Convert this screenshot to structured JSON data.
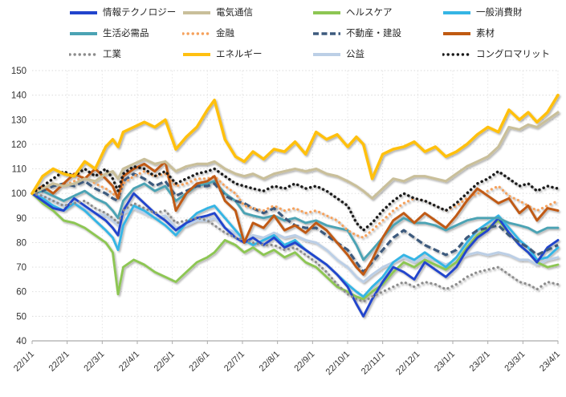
{
  "chart_data": {
    "type": "line",
    "title": "",
    "legend_position": "top",
    "grid": "dotted horizontal and vertical gridlines",
    "x_unit": "months since 2022-01-01",
    "xlim": [
      0,
      15
    ],
    "ylim": [
      40,
      150
    ],
    "y_ticks": [
      40,
      50,
      60,
      70,
      80,
      90,
      100,
      110,
      120,
      130,
      140,
      150
    ],
    "x_tick_labels": [
      "22/1/1",
      "22/2/1",
      "22/3/1",
      "22/4/1",
      "22/5/1",
      "22/6/1",
      "22/7/1",
      "22/8/1",
      "22/9/1",
      "22/10/1",
      "22/11/1",
      "22/12/1",
      "23/1/1",
      "23/2/1",
      "23/3/1",
      "23/4/1"
    ],
    "x": [
      0,
      0.3,
      0.6,
      0.9,
      1.2,
      1.5,
      1.8,
      2.1,
      2.3,
      2.45,
      2.6,
      2.9,
      3.2,
      3.5,
      3.8,
      4.1,
      4.4,
      4.7,
      5.0,
      5.2,
      5.5,
      5.8,
      6.05,
      6.3,
      6.6,
      6.9,
      7.2,
      7.5,
      7.8,
      8.1,
      8.4,
      8.7,
      9.0,
      9.25,
      9.45,
      9.7,
      10.0,
      10.3,
      10.6,
      10.9,
      11.2,
      11.5,
      11.8,
      12.1,
      12.4,
      12.7,
      13.0,
      13.3,
      13.6,
      13.9,
      14.15,
      14.4,
      14.7,
      15.0
    ],
    "series": [
      {
        "key": "it",
        "name": "情報テクノロジー",
        "color": "#2144CC",
        "style": "solid",
        "values": [
          100,
          97,
          94,
          93,
          98,
          95,
          92,
          89,
          86,
          83,
          93,
          100,
          96,
          92,
          89,
          85,
          88,
          90,
          91,
          92,
          86,
          82,
          80,
          82,
          79,
          82,
          78,
          80,
          77,
          74,
          71,
          67,
          62,
          55,
          50,
          57,
          64,
          70,
          68,
          65,
          72,
          69,
          66,
          70,
          77,
          82,
          85,
          90,
          84,
          79,
          76,
          72,
          78,
          81
        ]
      },
      {
        "key": "telecom",
        "name": "電気通信",
        "color": "#C9BF9A",
        "style": "solid",
        "values": [
          100,
          102,
          104,
          103,
          104,
          106,
          105,
          108,
          109,
          106,
          110,
          112,
          114,
          112,
          113,
          109,
          111,
          112,
          112,
          113,
          110,
          108,
          107,
          108,
          106,
          108,
          109,
          110,
          109,
          110,
          108,
          107,
          105,
          103,
          101,
          98,
          102,
          106,
          105,
          107,
          107,
          106,
          105,
          108,
          111,
          113,
          115,
          119,
          127,
          126,
          128,
          127,
          130,
          133
        ]
      },
      {
        "key": "healthcare",
        "name": "ヘルスケア",
        "color": "#8DC653",
        "style": "solid",
        "values": [
          100,
          96,
          93,
          89,
          88,
          86,
          83,
          80,
          76,
          59,
          70,
          73,
          71,
          68,
          66,
          64,
          68,
          72,
          74,
          76,
          81,
          79,
          76,
          78,
          75,
          77,
          74,
          76,
          72,
          70,
          66,
          62,
          60,
          58,
          57,
          60,
          63,
          68,
          72,
          70,
          73,
          71,
          69,
          72,
          78,
          83,
          86,
          89,
          84,
          79,
          76,
          72,
          70,
          71
        ]
      },
      {
        "key": "consumer-discretionary",
        "name": "一般消費財",
        "color": "#35B5E5",
        "style": "solid",
        "values": [
          100,
          98,
          95,
          93,
          96,
          93,
          89,
          85,
          82,
          77,
          87,
          95,
          93,
          90,
          87,
          83,
          88,
          92,
          94,
          95,
          90,
          85,
          81,
          79,
          81,
          83,
          79,
          81,
          77,
          74,
          71,
          67,
          63,
          60,
          58,
          62,
          66,
          72,
          75,
          73,
          76,
          73,
          70,
          74,
          80,
          85,
          88,
          91,
          86,
          81,
          78,
          73,
          74,
          78
        ]
      },
      {
        "key": "staples",
        "name": "生活必需品",
        "color": "#4BA3B4",
        "style": "solid",
        "values": [
          100,
          101,
          99,
          97,
          99,
          101,
          98,
          96,
          93,
          90,
          97,
          102,
          104,
          101,
          103,
          97,
          100,
          103,
          104,
          105,
          100,
          97,
          92,
          91,
          90,
          91,
          89,
          90,
          88,
          89,
          87,
          86,
          85,
          79,
          73,
          77,
          82,
          87,
          90,
          88,
          88,
          87,
          85,
          87,
          89,
          90,
          90,
          90,
          88,
          87,
          86,
          84,
          86,
          86
        ]
      },
      {
        "key": "financials",
        "name": "金融",
        "color": "#F5A15C",
        "style": "dotted",
        "values": [
          100,
          102,
          104,
          103,
          105,
          107,
          104,
          102,
          100,
          98,
          104,
          107,
          109,
          107,
          108,
          103,
          104,
          106,
          106,
          107,
          103,
          100,
          95,
          94,
          93,
          95,
          93,
          94,
          92,
          93,
          91,
          89,
          85,
          83,
          82,
          85,
          89,
          93,
          96,
          98,
          97,
          95,
          93,
          95,
          98,
          100,
          101,
          103,
          99,
          97,
          95,
          93,
          95,
          97
        ]
      },
      {
        "key": "real-estate",
        "name": "不動産・建設",
        "color": "#3D5A7D",
        "style": "dashed",
        "values": [
          100,
          101,
          103,
          104,
          103,
          105,
          102,
          100,
          98,
          97,
          105,
          108,
          106,
          103,
          105,
          99,
          101,
          103,
          103,
          104,
          99,
          97,
          96,
          94,
          92,
          94,
          90,
          87,
          86,
          86,
          83,
          80,
          77,
          72,
          68,
          72,
          77,
          82,
          85,
          82,
          79,
          77,
          75,
          77,
          82,
          85,
          86,
          87,
          83,
          80,
          78,
          75,
          77,
          79
        ]
      },
      {
        "key": "materials",
        "name": "素材",
        "color": "#C05A12",
        "style": "solid",
        "values": [
          100,
          103,
          100,
          104,
          108,
          106,
          110,
          106,
          103,
          98,
          107,
          110,
          112,
          109,
          113,
          93,
          100,
          104,
          105,
          107,
          97,
          93,
          80,
          88,
          86,
          91,
          85,
          87,
          84,
          88,
          85,
          80,
          75,
          70,
          67,
          73,
          82,
          89,
          92,
          88,
          92,
          89,
          86,
          91,
          97,
          102,
          99,
          96,
          98,
          92,
          95,
          89,
          94,
          93
        ]
      },
      {
        "key": "industrials",
        "name": "工業",
        "color": "#8C8C8C",
        "style": "dotted",
        "values": [
          100,
          99,
          97,
          95,
          96,
          97,
          94,
          92,
          90,
          88,
          93,
          96,
          94,
          92,
          93,
          88,
          89,
          90,
          89,
          87,
          84,
          82,
          81,
          80,
          79,
          79,
          77,
          78,
          75,
          72,
          68,
          63,
          59,
          57,
          56,
          58,
          60,
          62,
          64,
          62,
          64,
          63,
          61,
          63,
          66,
          68,
          69,
          70,
          67,
          64,
          63,
          61,
          64,
          63
        ]
      },
      {
        "key": "energy",
        "name": "エネルギー",
        "color": "#FFC011",
        "style": "solid",
        "values": [
          100,
          107,
          110,
          108,
          107,
          113,
          110,
          119,
          122,
          119,
          125,
          127,
          129,
          127,
          130,
          118,
          123,
          127,
          134,
          138,
          122,
          115,
          113,
          117,
          114,
          118,
          117,
          121,
          116,
          125,
          122,
          124,
          119,
          123,
          120,
          106,
          116,
          118,
          119,
          121,
          117,
          119,
          115,
          117,
          120,
          124,
          127,
          125,
          134,
          130,
          133,
          129,
          133,
          140
        ]
      },
      {
        "key": "utilities",
        "name": "公益",
        "color": "#BCCFE6",
        "style": "solid",
        "values": [
          100,
          99,
          97,
          95,
          96,
          94,
          92,
          91,
          89,
          87,
          92,
          94,
          92,
          90,
          91,
          86,
          87,
          89,
          89,
          90,
          86,
          84,
          81,
          83,
          82,
          84,
          82,
          83,
          81,
          80,
          77,
          73,
          70,
          66,
          64,
          67,
          70,
          72,
          74,
          72,
          74,
          73,
          71,
          73,
          75,
          76,
          75,
          76,
          75,
          73,
          73,
          71,
          73,
          74
        ]
      },
      {
        "key": "conglomerates",
        "name": "コングロマリット",
        "color": "#1A1A1A",
        "style": "dotted",
        "values": [
          100,
          103,
          106,
          109,
          107,
          110,
          107,
          110,
          106,
          101,
          108,
          111,
          110,
          107,
          109,
          104,
          106,
          108,
          109,
          110,
          107,
          104,
          103,
          102,
          101,
          103,
          102,
          104,
          102,
          103,
          101,
          98,
          95,
          88,
          85,
          88,
          93,
          97,
          100,
          98,
          97,
          95,
          93,
          96,
          100,
          104,
          106,
          109,
          106,
          103,
          104,
          101,
          103,
          102
        ]
      }
    ],
    "draw_order": [
      "utilities",
      "healthcare",
      "consumer-discretionary",
      "it",
      "staples",
      "real-estate",
      "industrials",
      "financials",
      "materials",
      "telecom",
      "conglomerates",
      "energy"
    ],
    "colors": {
      "grid": "#D9D9D9",
      "axis": "#ABABAB",
      "tick_label": "#333333",
      "legend_text": "#262626"
    }
  }
}
